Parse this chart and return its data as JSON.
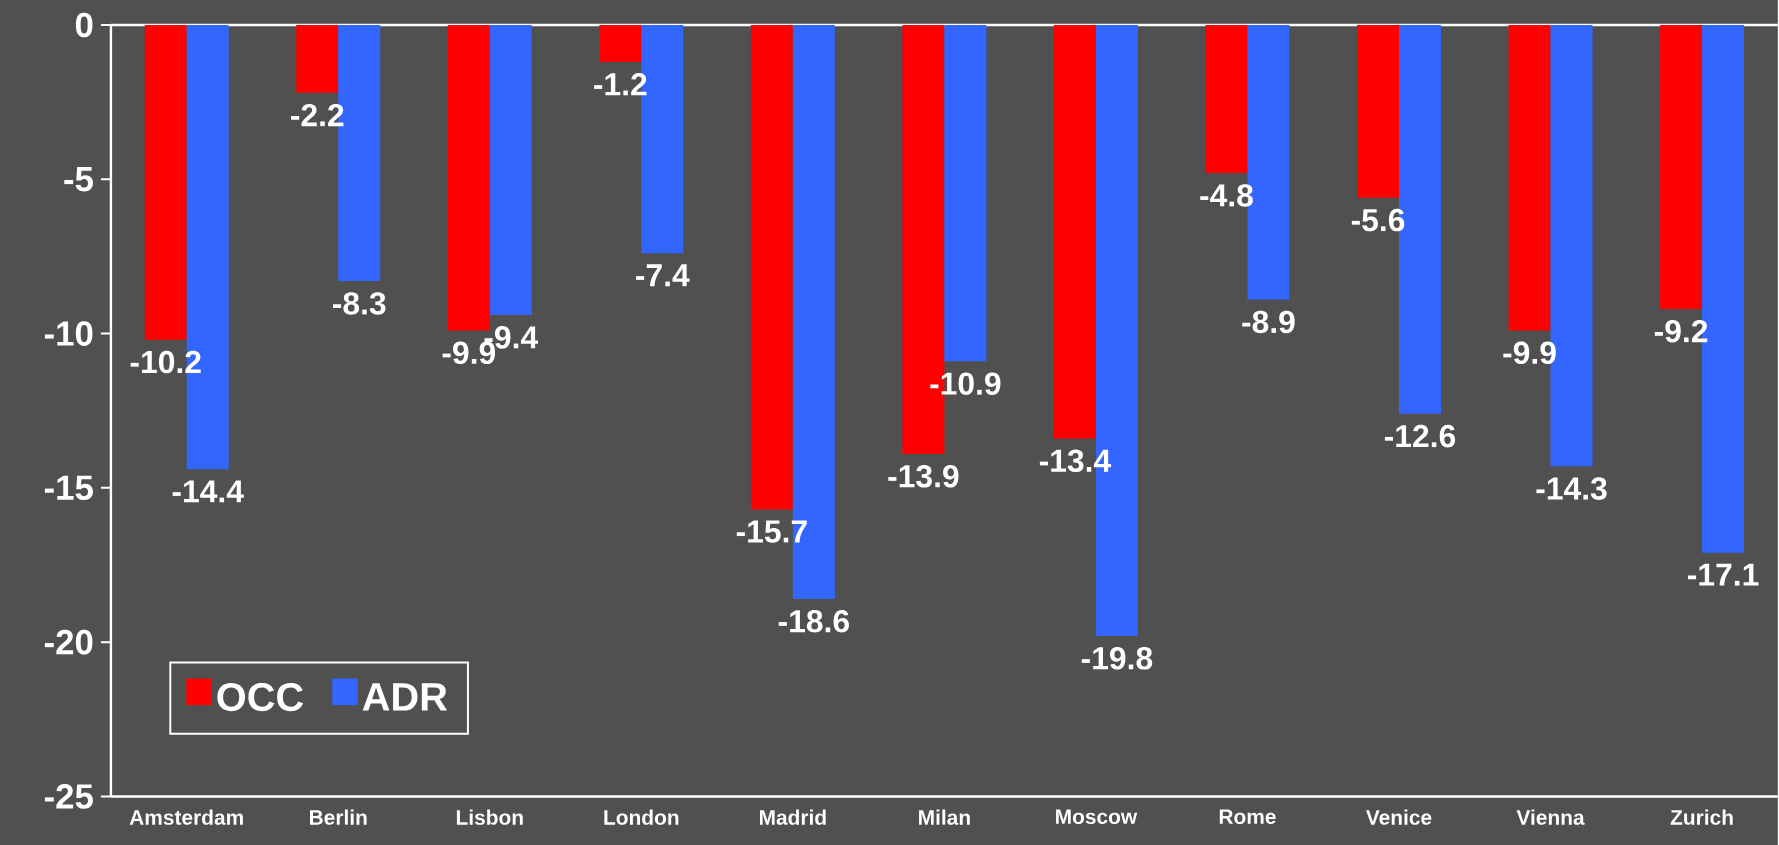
{
  "chart_data": {
    "type": "bar",
    "categories": [
      "Amsterdam",
      "Berlin",
      "Lisbon",
      "London",
      "Madrid",
      "Milan",
      "Moscow",
      "Rome",
      "Venice",
      "Vienna",
      "Zurich"
    ],
    "series": [
      {
        "name": "OCC",
        "color": "#ff0000",
        "values": [
          -10.2,
          -2.2,
          -9.9,
          -1.2,
          -15.7,
          -13.9,
          -13.4,
          -4.8,
          -5.6,
          -9.9,
          -9.2
        ]
      },
      {
        "name": "ADR",
        "color": "#3366ff",
        "values": [
          -14.4,
          -8.3,
          -9.4,
          -7.4,
          -18.6,
          -10.9,
          -19.8,
          -8.9,
          -12.6,
          -14.3,
          -17.1
        ]
      }
    ],
    "ylim": [
      -25,
      0
    ],
    "yticks": [
      -25,
      -20,
      -15,
      -10,
      -5,
      0
    ],
    "data_labels": true,
    "grid": false,
    "legend": "bottom left"
  }
}
